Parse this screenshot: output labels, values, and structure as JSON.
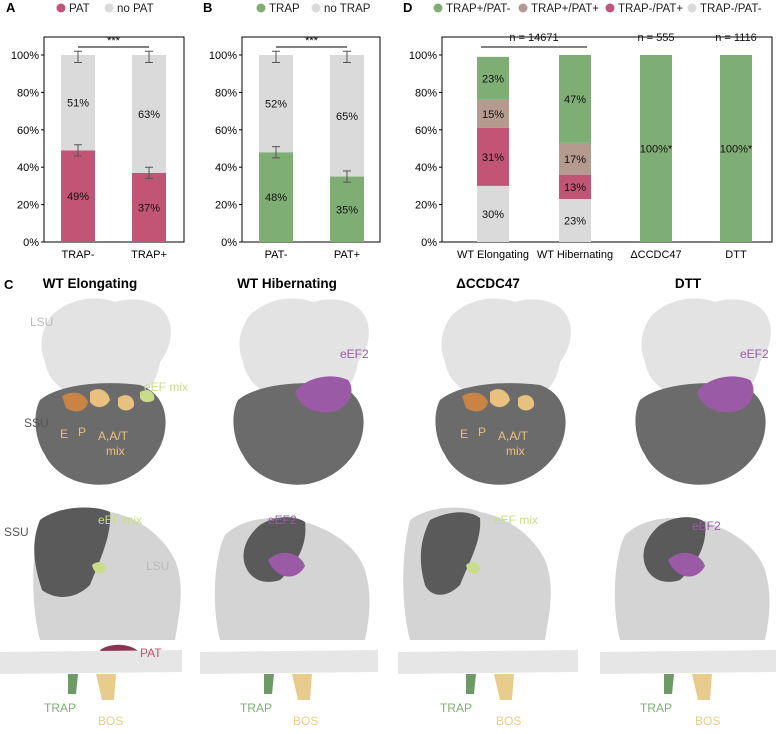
{
  "colors": {
    "pat": "#c25475",
    "trap": "#7fae75",
    "grey": "#dadada",
    "tan": "#b49a8f",
    "eef": "#c8dc8a",
    "eef2": "#9b5aa6",
    "epa": "#e8c07f",
    "orange": "#c98345",
    "bos": "#e8cc8c",
    "lsu": "#e3e3e3",
    "ssu": "#6b6b6b"
  },
  "chart_data": [
    {
      "id": "A",
      "type": "bar",
      "stacked": true,
      "panel_label": "A",
      "legend": [
        "PAT",
        "no PAT"
      ],
      "categories": [
        "TRAP-",
        "TRAP+"
      ],
      "series": [
        {
          "name": "PAT",
          "values": [
            49,
            37
          ],
          "labels": [
            "49%",
            "37%"
          ],
          "color": "#c25475"
        },
        {
          "name": "no PAT",
          "values": [
            51,
            63
          ],
          "labels": [
            "51%",
            "63%"
          ],
          "color": "#dadada"
        }
      ],
      "yticks": [
        "0%",
        "20%",
        "40%",
        "60%",
        "80%",
        "100%"
      ],
      "ylim": [
        0,
        100
      ],
      "significance": "***"
    },
    {
      "id": "B",
      "type": "bar",
      "stacked": true,
      "panel_label": "B",
      "legend": [
        "TRAP",
        "no TRAP"
      ],
      "categories": [
        "PAT-",
        "PAT+"
      ],
      "series": [
        {
          "name": "TRAP",
          "values": [
            48,
            35
          ],
          "labels": [
            "48%",
            "35%"
          ],
          "color": "#7fae75"
        },
        {
          "name": "no TRAP",
          "values": [
            52,
            65
          ],
          "labels": [
            "52%",
            "65%"
          ],
          "color": "#dadada"
        }
      ],
      "yticks": [
        "0%",
        "20%",
        "40%",
        "60%",
        "80%",
        "100%"
      ],
      "ylim": [
        0,
        100
      ],
      "significance": "***"
    },
    {
      "id": "D",
      "type": "bar",
      "stacked": true,
      "panel_label": "D",
      "legend": [
        "TRAP+/PAT-",
        "TRAP+/PAT+",
        "TRAP-/PAT+",
        "TRAP-/PAT-"
      ],
      "categories": [
        "WT Elongating",
        "WT Hibernating",
        "ΔCCDC47",
        "DTT"
      ],
      "series": [
        {
          "name": "TRAP-/PAT-",
          "values": [
            30,
            23,
            0,
            0
          ],
          "labels": [
            "30%",
            "23%",
            "",
            ""
          ],
          "color": "#dadada"
        },
        {
          "name": "TRAP-/PAT+",
          "values": [
            31,
            13,
            0,
            0
          ],
          "labels": [
            "31%",
            "13%",
            "",
            ""
          ],
          "color": "#c25475"
        },
        {
          "name": "TRAP+/PAT+",
          "values": [
            15,
            17,
            0,
            0
          ],
          "labels": [
            "15%",
            "17%",
            "",
            ""
          ],
          "color": "#b49a8f"
        },
        {
          "name": "TRAP+/PAT-",
          "values": [
            23,
            47,
            100,
            100
          ],
          "labels": [
            "23%",
            "47%",
            "100%*",
            "100%*"
          ],
          "color": "#7fae75"
        }
      ],
      "yticks": [
        "0%",
        "20%",
        "40%",
        "60%",
        "80%",
        "100%"
      ],
      "ylim": [
        0,
        100
      ],
      "n_labels": [
        "n = 14671",
        "n = 555",
        "n = 1116"
      ]
    }
  ],
  "panel_c": {
    "label": "C",
    "titles": [
      "WT Elongating",
      "WT Hibernating",
      "ΔCCDC47",
      "DTT"
    ],
    "labels": {
      "lsu": "LSU",
      "ssu": "SSU",
      "eef_mix": "eEF mix",
      "eef2": "eEF2",
      "e": "E",
      "p": "P",
      "aat": "A,A/T",
      "mix": "mix",
      "pat": "PAT",
      "trap": "TRAP",
      "bos": "BOS"
    }
  }
}
